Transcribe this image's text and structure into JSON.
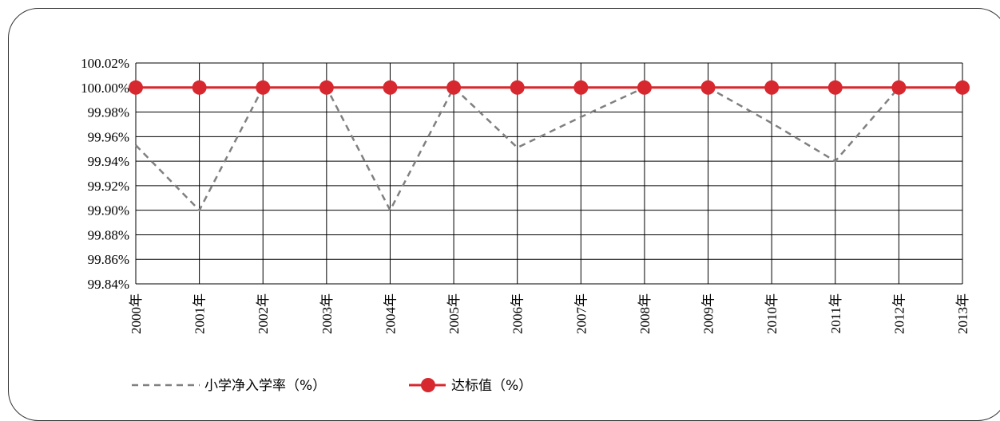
{
  "chart_data": {
    "type": "line",
    "categories": [
      "2000年",
      "2001年",
      "2002年",
      "2003年",
      "2004年",
      "2005年",
      "2006年",
      "2007年",
      "2008年",
      "2009年",
      "2010年",
      "2011年",
      "2012年",
      "2013年"
    ],
    "ylim": [
      99.84,
      100.02
    ],
    "y_ticks": [
      "100.02%",
      "100.00%",
      "99.98%",
      "99.96%",
      "99.94%",
      "99.92%",
      "99.90%",
      "99.88%",
      "99.86%",
      "99.84%"
    ],
    "grid": true,
    "legend_position": "bottom",
    "series": [
      {
        "name": "小学净入学率（%）",
        "style": "dashed",
        "color": "#808080",
        "values": [
          99.953,
          99.9,
          100.0,
          100.0,
          99.9,
          100.0,
          99.951,
          99.976,
          100.0,
          100.0,
          99.971,
          99.94,
          100.0,
          100.0
        ]
      },
      {
        "name": "达标值（%）",
        "style": "solid-marker",
        "color": "#d7282f",
        "values": [
          100,
          100,
          100,
          100,
          100,
          100,
          100,
          100,
          100,
          100,
          100,
          100,
          100,
          100
        ]
      }
    ]
  }
}
